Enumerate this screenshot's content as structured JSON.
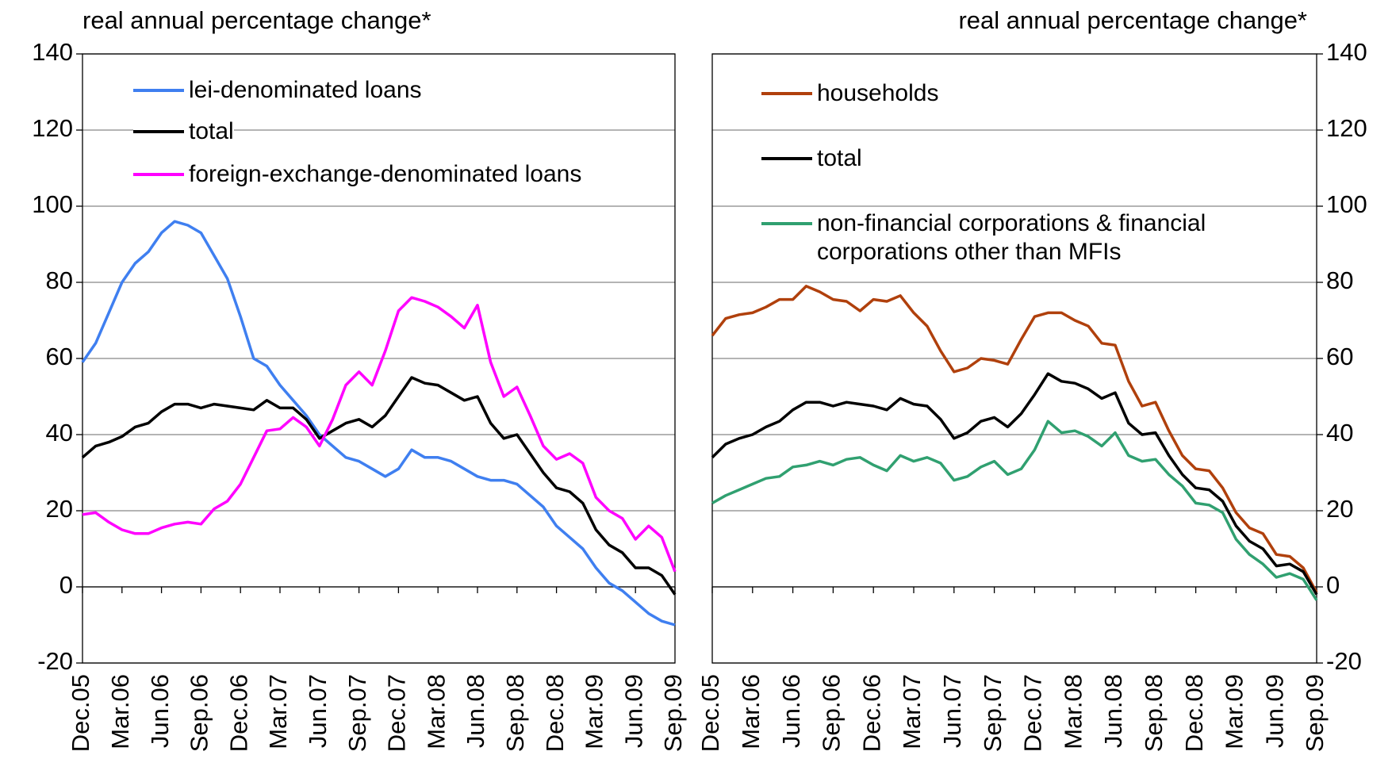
{
  "chart_data": [
    {
      "type": "line",
      "title": "real annual percentage change*",
      "categories": [
        "Dec.05",
        null,
        null,
        "Mar.06",
        null,
        null,
        "Jun.06",
        null,
        null,
        "Sep.06",
        null,
        null,
        "Dec.06",
        null,
        null,
        "Mar.07",
        null,
        null,
        "Jun.07",
        null,
        null,
        "Sep.07",
        null,
        null,
        "Dec.07",
        null,
        null,
        "Mar.08",
        null,
        null,
        "Jun.08",
        null,
        null,
        "Sep.08",
        null,
        null,
        "Dec.08",
        null,
        null,
        "Mar.09",
        null,
        null,
        "Jun.09",
        null,
        null,
        "Sep.09"
      ],
      "series": [
        {
          "name": "lei-denominated loans",
          "color": "#3f7ff0",
          "values": [
            59,
            64,
            72,
            80,
            85,
            88,
            93,
            96,
            95,
            93,
            87,
            81,
            71,
            60,
            58,
            53,
            49,
            45,
            40,
            37,
            34,
            33,
            31,
            29,
            31,
            36,
            34,
            34,
            33,
            31,
            29,
            28,
            28,
            27,
            24,
            21,
            16,
            13,
            10,
            5,
            1,
            -1,
            -4,
            -7,
            -9,
            -10
          ]
        },
        {
          "name": "total",
          "color": "#000000",
          "values": [
            34,
            37,
            38,
            39.5,
            42,
            43,
            46,
            48,
            48,
            47,
            48,
            47.5,
            47,
            46.5,
            49,
            47,
            47,
            44,
            39,
            41,
            43,
            44,
            42,
            45,
            50,
            55,
            53.5,
            53,
            51,
            49,
            50,
            43,
            39,
            40,
            35,
            30,
            26,
            25,
            22,
            15,
            11,
            9,
            5,
            5,
            3,
            -2
          ]
        },
        {
          "name": "foreign-exchange-denominated loans",
          "color": "#ff00ff",
          "values": [
            19,
            19.5,
            17,
            15,
            14,
            14,
            15.5,
            16.5,
            17,
            16.5,
            20.5,
            22.5,
            27,
            34,
            41,
            41.5,
            44.5,
            42,
            37,
            44,
            53,
            56.5,
            53,
            62,
            72.5,
            76,
            75,
            73.5,
            71,
            68,
            74,
            59,
            50,
            52.5,
            45,
            37,
            33.5,
            35,
            32.5,
            23.5,
            20,
            18,
            12.5,
            16,
            13,
            4
          ]
        }
      ],
      "ylim": [
        -20,
        140
      ],
      "yticks": [
        -20,
        0,
        20,
        40,
        60,
        80,
        100,
        120,
        140
      ],
      "grid": true,
      "y_axis_side": "left"
    },
    {
      "type": "line",
      "title": "real annual percentage change*",
      "categories": [
        "Dec.05",
        null,
        null,
        "Mar.06",
        null,
        null,
        "Jun.06",
        null,
        null,
        "Sep.06",
        null,
        null,
        "Dec.06",
        null,
        null,
        "Mar.07",
        null,
        null,
        "Jun.07",
        null,
        null,
        "Sep.07",
        null,
        null,
        "Dec.07",
        null,
        null,
        "Mar.08",
        null,
        null,
        "Jun.08",
        null,
        null,
        "Sep.08",
        null,
        null,
        "Dec.08",
        null,
        null,
        "Mar.09",
        null,
        null,
        "Jun.09",
        null,
        null,
        "Sep.09"
      ],
      "series": [
        {
          "name": "households",
          "color": "#b0400c",
          "values": [
            66,
            70.5,
            71.5,
            72,
            73.5,
            75.5,
            75.5,
            79,
            77.5,
            75.5,
            75,
            72.5,
            75.5,
            75,
            76.5,
            72,
            68.5,
            62,
            56.5,
            57.5,
            60,
            59.5,
            58.5,
            65,
            71,
            72,
            72,
            70,
            68.5,
            64,
            63.5,
            54,
            47.5,
            48.5,
            41,
            34.5,
            31,
            30.5,
            26,
            19.5,
            15.5,
            14,
            8.5,
            8,
            5,
            -1.5
          ]
        },
        {
          "name": "total",
          "color": "#000000",
          "values": [
            34,
            37.5,
            39,
            40,
            42,
            43.5,
            46.5,
            48.5,
            48.5,
            47.5,
            48.5,
            48,
            47.5,
            46.5,
            49.5,
            48,
            47.5,
            44,
            39,
            40.5,
            43.5,
            44.5,
            42,
            45.5,
            50.5,
            56,
            54,
            53.5,
            52,
            49.5,
            51,
            43,
            40,
            40.5,
            34.5,
            29.5,
            26,
            25.5,
            22.5,
            16,
            12,
            10,
            5.5,
            6,
            4,
            -2
          ]
        },
        {
          "name": "non-financial corporations & financial corporations other than MFIs",
          "color": "#30a070",
          "values": [
            22,
            24,
            25.5,
            27,
            28.5,
            29,
            31.5,
            32,
            33,
            32,
            33.5,
            34,
            32,
            30.5,
            34.5,
            33,
            34,
            32.5,
            28,
            29,
            31.5,
            33,
            29.5,
            31,
            36,
            43.5,
            40.5,
            41,
            39.5,
            37,
            40.5,
            34.5,
            33,
            33.5,
            29.5,
            26.5,
            22,
            21.5,
            19.5,
            12.5,
            8.5,
            6,
            2.5,
            3.5,
            2,
            -3.5
          ]
        }
      ],
      "ylim": [
        -20,
        140
      ],
      "yticks": [
        -20,
        0,
        20,
        40,
        60,
        80,
        100,
        120,
        140
      ],
      "grid": true,
      "y_axis_side": "right"
    }
  ]
}
